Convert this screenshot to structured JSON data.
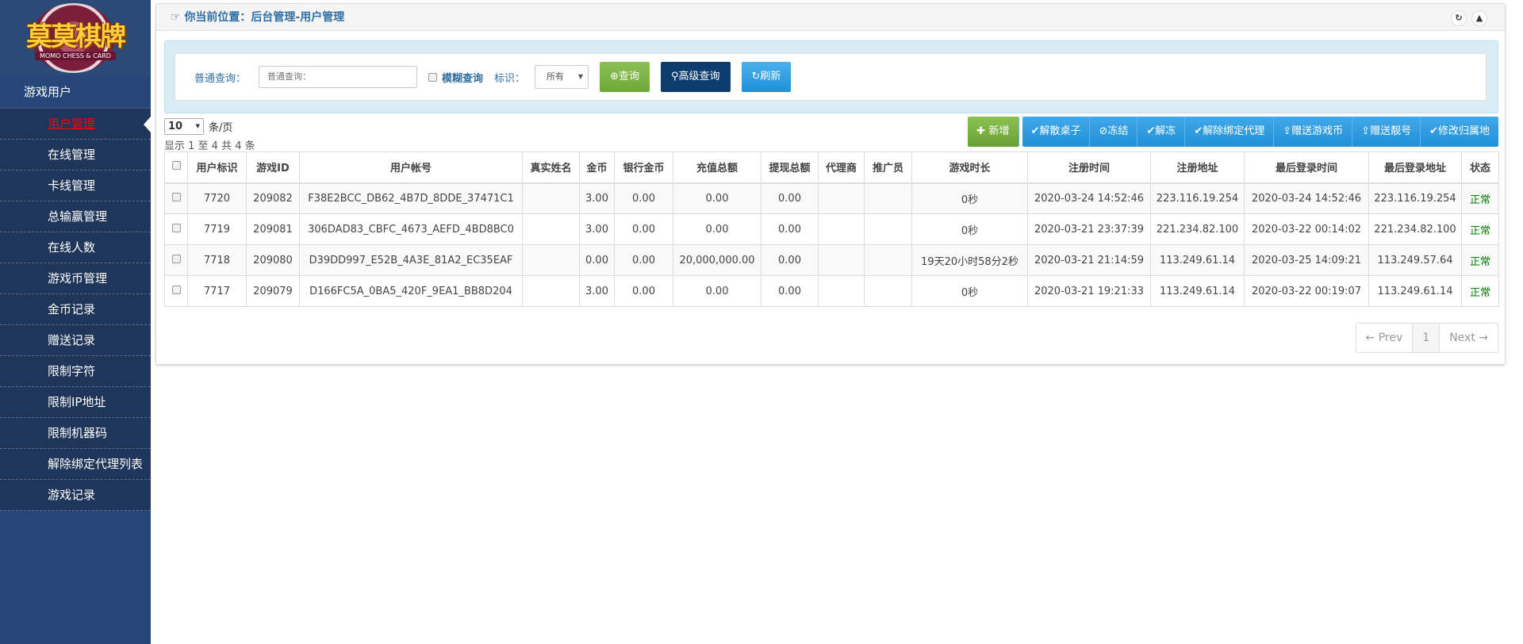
{
  "logo": {
    "title": "莫莫棋牌",
    "subtitle": "MOMO CHESS & CARD"
  },
  "sidebar": {
    "section": "游戏用户",
    "items": [
      "用户管理",
      "在线管理",
      "卡线管理",
      "总输赢管理",
      "在线人数",
      "游戏币管理",
      "金币记录",
      "赠送记录",
      "限制字符",
      "限制IP地址",
      "限制机器码",
      "解除绑定代理列表",
      "游戏记录"
    ],
    "active": "用户管理"
  },
  "breadcrumb": "你当前位置：后台管理-用户管理",
  "search": {
    "label": "普通查询：",
    "placeholder": "普通查询：",
    "fuzzy": "模糊查询",
    "tag_label": "标识：",
    "tag_value": "所有",
    "query": "查询",
    "advanced": "高级查询",
    "refresh": "刷新"
  },
  "paging": {
    "page_size": "10",
    "per_page": "条/页",
    "info": "显示 1 至 4 共 4 条",
    "prev": "← Prev",
    "page": "1",
    "next": "Next →"
  },
  "actions": {
    "add": "新增",
    "items": [
      "解散桌子",
      "冻结",
      "解冻",
      "解除绑定代理",
      "赠送游戏币",
      "赠送靓号",
      "修改归属地"
    ]
  },
  "table": {
    "columns": [
      "用户标识",
      "游戏ID",
      "用户帐号",
      "真实姓名",
      "金币",
      "银行金币",
      "充值总额",
      "提现总额",
      "代理商",
      "推广员",
      "游戏时长",
      "注册时间",
      "注册地址",
      "最后登录时间",
      "最后登录地址",
      "状态"
    ],
    "rows": [
      [
        "7720",
        "209082",
        "F38E2BCC_DB62_4B7D_8DDE_37471C1",
        "",
        "3.00",
        "0.00",
        "0.00",
        "0.00",
        "",
        "",
        "0秒",
        "2020-03-24 14:52:46",
        "223.116.19.254",
        "2020-03-24 14:52:46",
        "223.116.19.254",
        "正常"
      ],
      [
        "7719",
        "209081",
        "306DAD83_CBFC_4673_AEFD_4BD8BC0",
        "",
        "3.00",
        "0.00",
        "0.00",
        "0.00",
        "",
        "",
        "0秒",
        "2020-03-21 23:37:39",
        "221.234.82.100",
        "2020-03-22 00:14:02",
        "221.234.82.100",
        "正常"
      ],
      [
        "7718",
        "209080",
        "D39DD997_E52B_4A3E_81A2_EC35EAF",
        "",
        "0.00",
        "0.00",
        "20,000,000.00",
        "0.00",
        "",
        "",
        "19天20小时58分2秒",
        "2020-03-21 21:14:59",
        "113.249.61.14",
        "2020-03-25 14:09:21",
        "113.249.57.64",
        "正常"
      ],
      [
        "7717",
        "209079",
        "D166FC5A_0BA5_420F_9EA1_BB8D204",
        "",
        "3.00",
        "0.00",
        "0.00",
        "0.00",
        "",
        "",
        "0秒",
        "2020-03-21 19:21:33",
        "113.249.61.14",
        "2020-03-22 00:19:07",
        "113.249.61.14",
        "正常"
      ]
    ]
  },
  "colors": {
    "sidebar": "#1f3559",
    "green": "#7cb342",
    "navy": "#0d3c6e",
    "blue": "#1f90d8",
    "status_ok": "#008000"
  }
}
